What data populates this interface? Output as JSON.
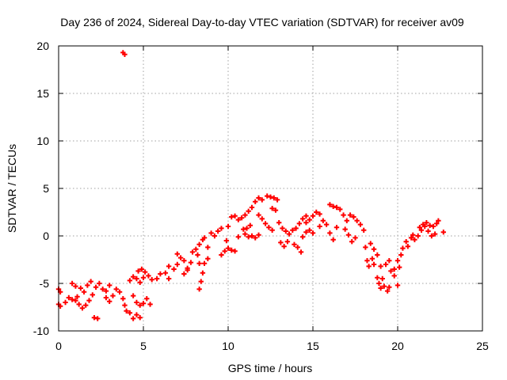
{
  "chart_data": {
    "type": "scatter",
    "title": "Day 236 of 2024, Sidereal Day-to-day VTEC variation (SDTVAR) for receiver av09",
    "xlabel": "GPS time / hours",
    "ylabel": "SDTVAR / TECUs",
    "xlim": [
      0,
      25
    ],
    "ylim": [
      -10,
      20
    ],
    "x_ticks": [
      0,
      5,
      10,
      15,
      20,
      25
    ],
    "y_ticks": [
      -10,
      -5,
      0,
      5,
      10,
      15,
      20
    ],
    "x_tick_labels": [
      "0",
      "5",
      "10",
      "15",
      "20",
      "25"
    ],
    "y_tick_labels": [
      "-10",
      "-5",
      "0",
      "5",
      "10",
      "15",
      "20"
    ],
    "grid": true,
    "marker": "+",
    "series": [
      {
        "name": "av09",
        "color": "#ff0000",
        "points": [
          [
            0.0,
            -5.6
          ],
          [
            0.1,
            -5.9
          ],
          [
            0.0,
            -7.2
          ],
          [
            0.1,
            -7.4
          ],
          [
            0.4,
            -7.0
          ],
          [
            0.6,
            -6.5
          ],
          [
            0.8,
            -6.7
          ],
          [
            1.0,
            -6.8
          ],
          [
            1.1,
            -6.4
          ],
          [
            0.8,
            -5.0
          ],
          [
            1.0,
            -5.3
          ],
          [
            1.3,
            -5.5
          ],
          [
            1.5,
            -5.9
          ],
          [
            1.7,
            -5.2
          ],
          [
            1.9,
            -4.8
          ],
          [
            1.2,
            -7.2
          ],
          [
            1.4,
            -7.6
          ],
          [
            1.6,
            -7.3
          ],
          [
            1.8,
            -6.8
          ],
          [
            2.0,
            -6.2
          ],
          [
            2.1,
            -8.6
          ],
          [
            2.3,
            -8.7
          ],
          [
            2.2,
            -5.4
          ],
          [
            2.4,
            -5.0
          ],
          [
            2.6,
            -5.6
          ],
          [
            2.8,
            -5.8
          ],
          [
            3.0,
            -5.2
          ],
          [
            2.8,
            -6.5
          ],
          [
            3.0,
            -6.9
          ],
          [
            3.2,
            -6.3
          ],
          [
            3.4,
            -5.6
          ],
          [
            3.6,
            -5.9
          ],
          [
            3.8,
            -6.6
          ],
          [
            3.9,
            -7.3
          ],
          [
            3.8,
            19.3
          ],
          [
            3.9,
            19.1
          ],
          [
            4.0,
            -7.9
          ],
          [
            4.2,
            -8.1
          ],
          [
            4.2,
            -4.7
          ],
          [
            4.4,
            -4.3
          ],
          [
            4.6,
            -4.5
          ],
          [
            4.8,
            -4.9
          ],
          [
            5.0,
            -4.4
          ],
          [
            4.7,
            -3.7
          ],
          [
            4.9,
            -3.5
          ],
          [
            5.1,
            -3.8
          ],
          [
            5.3,
            -4.2
          ],
          [
            5.5,
            -4.6
          ],
          [
            4.4,
            -6.3
          ],
          [
            4.6,
            -7.0
          ],
          [
            4.8,
            -7.3
          ],
          [
            5.0,
            -7.1
          ],
          [
            5.2,
            -6.6
          ],
          [
            5.4,
            -7.2
          ],
          [
            4.6,
            -8.3
          ],
          [
            4.8,
            -8.6
          ],
          [
            4.4,
            -8.7
          ],
          [
            5.8,
            -4.5
          ],
          [
            6.0,
            -4.0
          ],
          [
            6.3,
            -3.9
          ],
          [
            6.5,
            -4.5
          ],
          [
            6.5,
            -3.2
          ],
          [
            6.8,
            -3.5
          ],
          [
            7.0,
            -3.0
          ],
          [
            7.0,
            -1.9
          ],
          [
            7.2,
            -2.3
          ],
          [
            7.4,
            -2.6
          ],
          [
            7.6,
            -3.4
          ],
          [
            7.8,
            -2.8
          ],
          [
            7.4,
            -4.0
          ],
          [
            7.6,
            -3.6
          ],
          [
            7.9,
            -1.7
          ],
          [
            8.1,
            -1.4
          ],
          [
            8.3,
            -0.9
          ],
          [
            8.5,
            -0.4
          ],
          [
            8.6,
            -0.2
          ],
          [
            8.2,
            -2.0
          ],
          [
            8.3,
            -2.9
          ],
          [
            8.3,
            -5.6
          ],
          [
            8.4,
            -4.8
          ],
          [
            8.5,
            -3.9
          ],
          [
            8.6,
            -2.9
          ],
          [
            8.8,
            -2.4
          ],
          [
            8.8,
            -1.2
          ],
          [
            9.0,
            0.3
          ],
          [
            9.2,
            0.0
          ],
          [
            9.4,
            0.5
          ],
          [
            9.6,
            0.8
          ],
          [
            9.6,
            -2.0
          ],
          [
            9.8,
            -1.6
          ],
          [
            9.9,
            -0.5
          ],
          [
            10.0,
            1.0
          ],
          [
            10.2,
            2.0
          ],
          [
            10.4,
            2.1
          ],
          [
            10.6,
            1.7
          ],
          [
            10.8,
            1.9
          ],
          [
            11.0,
            2.2
          ],
          [
            11.2,
            2.6
          ],
          [
            10.0,
            -1.3
          ],
          [
            10.2,
            -1.5
          ],
          [
            10.4,
            -1.6
          ],
          [
            10.6,
            -0.1
          ],
          [
            10.9,
            0.7
          ],
          [
            11.1,
            0.8
          ],
          [
            11.3,
            1.1
          ],
          [
            11.0,
            0.2
          ],
          [
            11.2,
            -0.1
          ],
          [
            11.4,
            0.0
          ],
          [
            11.6,
            -0.2
          ],
          [
            11.8,
            0.1
          ],
          [
            11.4,
            3.0
          ],
          [
            11.6,
            3.6
          ],
          [
            11.8,
            4.0
          ],
          [
            12.0,
            3.8
          ],
          [
            11.8,
            2.2
          ],
          [
            12.0,
            1.8
          ],
          [
            12.2,
            1.3
          ],
          [
            12.4,
            0.9
          ],
          [
            12.6,
            0.6
          ],
          [
            12.3,
            4.2
          ],
          [
            12.5,
            4.1
          ],
          [
            12.7,
            4.0
          ],
          [
            12.9,
            3.8
          ],
          [
            12.6,
            2.9
          ],
          [
            12.8,
            2.7
          ],
          [
            13.0,
            1.4
          ],
          [
            13.2,
            0.8
          ],
          [
            13.4,
            0.5
          ],
          [
            13.1,
            -0.7
          ],
          [
            13.3,
            -1.1
          ],
          [
            13.5,
            -0.6
          ],
          [
            13.6,
            0.2
          ],
          [
            13.8,
            0.6
          ],
          [
            14.0,
            0.8
          ],
          [
            14.2,
            1.3
          ],
          [
            14.4,
            1.8
          ],
          [
            14.6,
            2.1
          ],
          [
            13.9,
            -0.9
          ],
          [
            14.1,
            -1.2
          ],
          [
            14.3,
            -1.7
          ],
          [
            14.6,
            1.4
          ],
          [
            14.8,
            1.7
          ],
          [
            15.0,
            2.1
          ],
          [
            15.2,
            2.5
          ],
          [
            15.4,
            2.3
          ],
          [
            14.4,
            -0.1
          ],
          [
            14.6,
            0.4
          ],
          [
            14.8,
            0.6
          ],
          [
            15.0,
            0.3
          ],
          [
            15.4,
            1.0
          ],
          [
            15.6,
            1.6
          ],
          [
            15.8,
            1.2
          ],
          [
            16.0,
            0.3
          ],
          [
            16.2,
            -0.4
          ],
          [
            16.4,
            0.9
          ],
          [
            16.0,
            3.3
          ],
          [
            16.2,
            3.1
          ],
          [
            16.4,
            3.0
          ],
          [
            16.6,
            2.8
          ],
          [
            16.8,
            2.2
          ],
          [
            17.0,
            1.6
          ],
          [
            16.9,
            0.7
          ],
          [
            17.1,
            0.1
          ],
          [
            17.3,
            -0.6
          ],
          [
            17.5,
            -0.2
          ],
          [
            17.2,
            2.2
          ],
          [
            17.4,
            2.0
          ],
          [
            17.6,
            1.6
          ],
          [
            17.8,
            1.2
          ],
          [
            18.0,
            0.6
          ],
          [
            18.1,
            -1.2
          ],
          [
            18.2,
            -2.6
          ],
          [
            18.3,
            -3.2
          ],
          [
            18.5,
            -2.4
          ],
          [
            18.6,
            -3.0
          ],
          [
            18.4,
            -0.8
          ],
          [
            18.6,
            -1.4
          ],
          [
            18.8,
            -2.0
          ],
          [
            19.0,
            -3.2
          ],
          [
            19.1,
            -4.5
          ],
          [
            19.2,
            -5.3
          ],
          [
            19.4,
            -5.8
          ],
          [
            19.5,
            -5.4
          ],
          [
            18.8,
            -4.4
          ],
          [
            18.9,
            -5.0
          ],
          [
            19.0,
            -5.5
          ],
          [
            19.3,
            -3.0
          ],
          [
            19.5,
            -2.6
          ],
          [
            19.6,
            -3.7
          ],
          [
            19.8,
            -4.2
          ],
          [
            20.0,
            -5.2
          ],
          [
            19.8,
            -3.5
          ],
          [
            20.0,
            -2.6
          ],
          [
            20.1,
            -3.3
          ],
          [
            20.2,
            -2.0
          ],
          [
            20.3,
            -1.3
          ],
          [
            20.5,
            -0.6
          ],
          [
            20.6,
            -1.1
          ],
          [
            20.8,
            -0.2
          ],
          [
            20.9,
            0.1
          ],
          [
            21.0,
            -0.4
          ],
          [
            21.2,
            0.0
          ],
          [
            21.4,
            0.6
          ],
          [
            21.6,
            1.0
          ],
          [
            21.8,
            0.5
          ],
          [
            22.0,
            0.0
          ],
          [
            22.2,
            0.2
          ],
          [
            21.3,
            0.9
          ],
          [
            21.5,
            1.2
          ],
          [
            21.7,
            1.4
          ],
          [
            21.9,
            1.1
          ],
          [
            22.1,
            1.0
          ],
          [
            22.3,
            1.3
          ],
          [
            22.4,
            1.6
          ],
          [
            22.7,
            0.4
          ]
        ]
      }
    ]
  }
}
